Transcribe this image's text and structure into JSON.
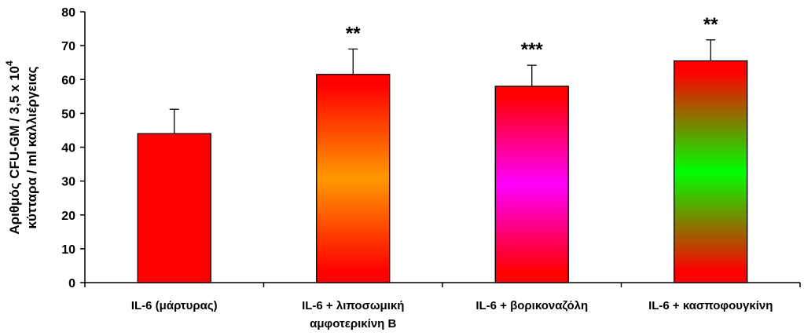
{
  "chart_data": {
    "type": "bar",
    "title": "",
    "xlabel": "",
    "ylabel_lines": [
      "Αριθμός CFU-GM / 3,5 x 10",
      "κύτταρα / ml καλλιέργειας"
    ],
    "ylabel_superscript": "4",
    "ylim": [
      0,
      80
    ],
    "yticks": [
      0,
      10,
      20,
      30,
      40,
      50,
      60,
      70,
      80
    ],
    "categories": [
      [
        "IL-6 (μάρτυρας)"
      ],
      [
        "IL-6 + λιποσωμική",
        "αμφοτερικίνη Β"
      ],
      [
        "IL-6 + βορικοναζόλη"
      ],
      [
        "IL-6 + κασποφουγκίνη"
      ]
    ],
    "values": [
      44,
      61.5,
      58,
      65.5
    ],
    "error_upper": [
      51.2,
      69,
      64.2,
      71.7
    ],
    "significance": [
      "",
      "**",
      "***",
      "**"
    ],
    "bar_gradients": [
      [
        "#ff0000",
        "#ff0000",
        "#ff0000"
      ],
      [
        "#ff0000",
        "#ff9900",
        "#ff0000"
      ],
      [
        "#ff0000",
        "#ff00ff",
        "#ff0000"
      ],
      [
        "#ff0000",
        "#00ff00",
        "#ff0000"
      ]
    ],
    "grid": false,
    "legend": "none"
  }
}
